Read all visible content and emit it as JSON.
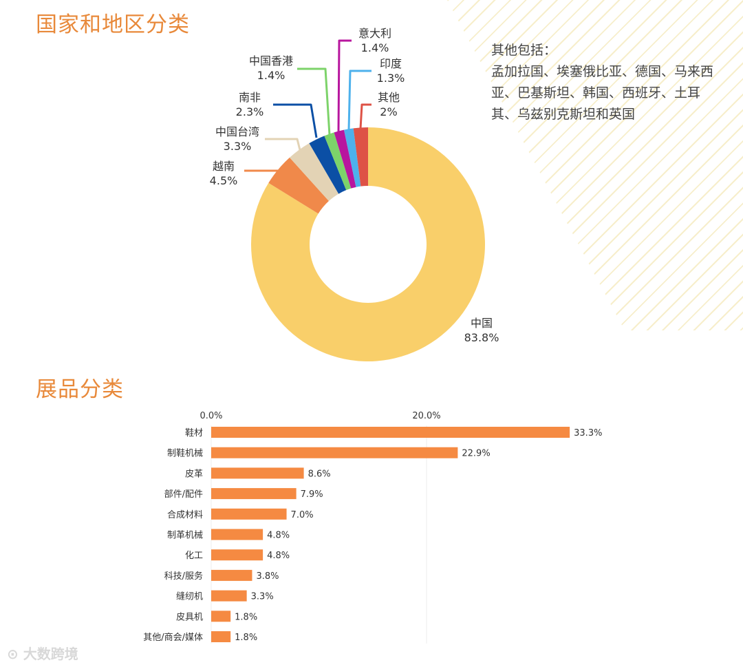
{
  "section_titles": {
    "regions": "国家和地区分类",
    "exhibits": "展品分类"
  },
  "others_note": {
    "heading": "其他包括：",
    "text": "孟加拉国、埃塞俄比亚、德国、马来西亚、巴基斯坦、韩国、西班牙、土耳其、乌兹别克斯坦和英国"
  },
  "watermark": "大数跨境",
  "chart_data": [
    {
      "type": "pie",
      "donut": true,
      "title": "国家和地区分类",
      "slices": [
        {
          "label": "中国",
          "value": 83.8,
          "display": "83.8%",
          "color": "#F9CF6A"
        },
        {
          "label": "越南",
          "value": 4.5,
          "display": "4.5%",
          "color": "#F0894A"
        },
        {
          "label": "中国台湾",
          "value": 3.3,
          "display": "3.3%",
          "color": "#E3D3B5"
        },
        {
          "label": "南非",
          "value": 2.3,
          "display": "2.3%",
          "color": "#0B4FA5"
        },
        {
          "label": "中国香港",
          "value": 1.4,
          "display": "1.4%",
          "color": "#7DD36A"
        },
        {
          "label": "意大利",
          "value": 1.4,
          "display": "1.4%",
          "color": "#B8169E"
        },
        {
          "label": "印度",
          "value": 1.3,
          "display": "1.3%",
          "color": "#4DB1EC"
        },
        {
          "label": "其他",
          "value": 2.0,
          "display": "2%",
          "color": "#DE5246"
        }
      ]
    },
    {
      "type": "bar",
      "orientation": "horizontal",
      "title": "展品分类",
      "categories": [
        "鞋材",
        "制鞋机械",
        "皮革",
        "部件/配件",
        "合成材料",
        "制革机械",
        "化工",
        "科技/服务",
        "缝纫机",
        "皮具机",
        "其他/商会/媒体"
      ],
      "values": [
        33.3,
        22.9,
        8.6,
        7.9,
        7.0,
        4.8,
        4.8,
        3.8,
        3.3,
        1.8,
        1.8
      ],
      "value_labels": [
        "33.3%",
        "22.9%",
        "8.6%",
        "7.9%",
        "7.0%",
        "4.8%",
        "4.8%",
        "3.8%",
        "3.3%",
        "1.8%",
        "1.8%"
      ],
      "xticks": [
        {
          "value": 0,
          "label": "0.0%"
        },
        {
          "value": 20,
          "label": "20.0%"
        }
      ],
      "xaxis_position": "top",
      "grid": true,
      "color": "#F58A42"
    }
  ]
}
